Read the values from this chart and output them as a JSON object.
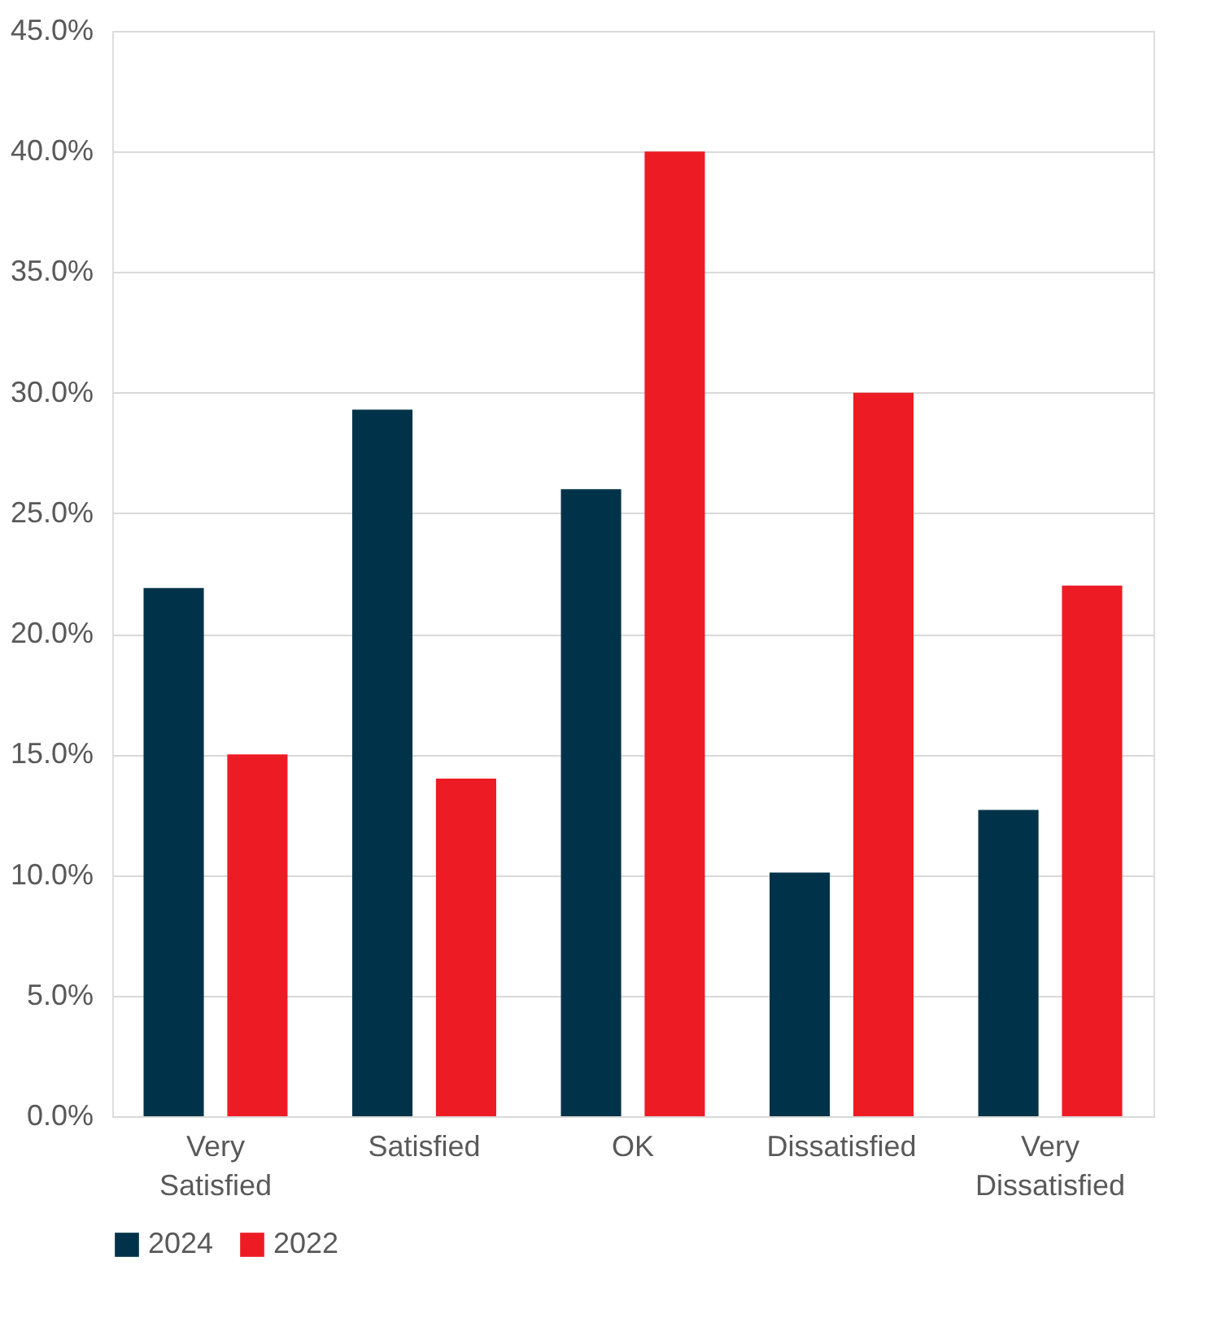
{
  "chart_data": {
    "type": "bar",
    "categories": [
      "Very Satisfied",
      "Satisfied",
      "OK",
      "Dissatisfied",
      "Very Dissatisfied"
    ],
    "series": [
      {
        "name": "2024",
        "color": "#003349",
        "values": [
          21.9,
          29.3,
          26.0,
          10.1,
          12.7
        ]
      },
      {
        "name": "2022",
        "color": "#ed1c24",
        "values": [
          15.0,
          14.0,
          40.0,
          30.0,
          22.0
        ]
      }
    ],
    "ylim": [
      0,
      45
    ],
    "yticks": [
      {
        "value": 0,
        "label": "0.0%"
      },
      {
        "value": 5,
        "label": "5.0%"
      },
      {
        "value": 10,
        "label": "10.0%"
      },
      {
        "value": 15,
        "label": "15.0%"
      },
      {
        "value": 20,
        "label": "20.0%"
      },
      {
        "value": 25,
        "label": "25.0%"
      },
      {
        "value": 30,
        "label": "30.0%"
      },
      {
        "value": 35,
        "label": "35.0%"
      },
      {
        "value": 40,
        "label": "40.0%"
      },
      {
        "value": 45,
        "label": "45.0%"
      }
    ],
    "grid": "y",
    "legend": "bottom"
  }
}
